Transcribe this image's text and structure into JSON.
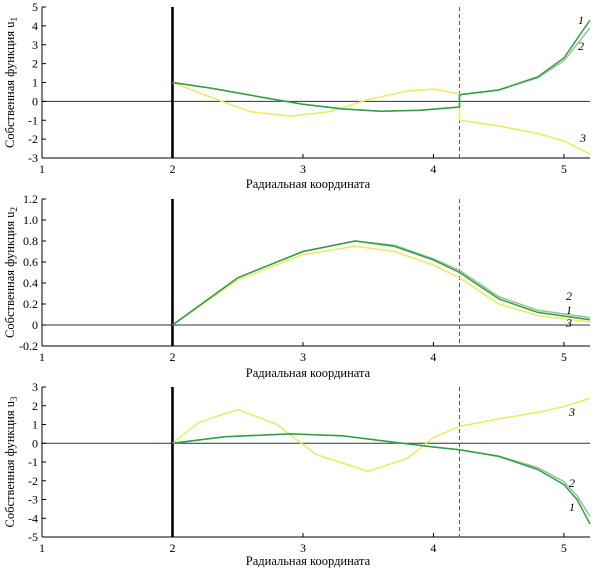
{
  "colors": {
    "curve1": "#2e9e4a",
    "curve2": "#97c486",
    "curve3": "#ecea5e",
    "zero_line": "#333333",
    "axes": "#000000",
    "boundary": "#000000"
  },
  "chart_data": [
    {
      "type": "line",
      "title": "",
      "xlabel": "Радиальная координата",
      "ylabel": "Собственная функция u",
      "ylabel_subscript": "1",
      "xlim": [
        1,
        5.2
      ],
      "ylim": [
        -3,
        5
      ],
      "x_ticks": [
        1,
        2,
        3,
        4,
        5
      ],
      "y_ticks": [
        -3,
        -2,
        -1,
        0,
        1,
        2,
        3,
        4,
        5
      ],
      "vertical_line_solid": 2,
      "vertical_line_dashed": 4.2,
      "grid": false,
      "series": [
        {
          "name": "1",
          "points": [
            [
              2.0,
              1.0
            ],
            [
              2.3,
              0.7
            ],
            [
              2.7,
              0.2
            ],
            [
              3.0,
              -0.15
            ],
            [
              3.3,
              -0.4
            ],
            [
              3.6,
              -0.52
            ],
            [
              3.9,
              -0.47
            ],
            [
              4.2,
              -0.3
            ],
            [
              4.2,
              0.35
            ],
            [
              4.5,
              0.6
            ],
            [
              4.8,
              1.3
            ],
            [
              5.0,
              2.3
            ],
            [
              5.2,
              4.3
            ]
          ]
        },
        {
          "name": "2",
          "points": [
            [
              2.0,
              1.0
            ],
            [
              2.3,
              0.7
            ],
            [
              2.7,
              0.2
            ],
            [
              3.0,
              -0.15
            ],
            [
              3.3,
              -0.4
            ],
            [
              3.6,
              -0.52
            ],
            [
              3.9,
              -0.47
            ],
            [
              4.2,
              -0.3
            ],
            [
              4.2,
              0.35
            ],
            [
              4.5,
              0.6
            ],
            [
              4.8,
              1.25
            ],
            [
              5.0,
              2.15
            ],
            [
              5.2,
              3.9
            ]
          ]
        },
        {
          "name": "3",
          "points": [
            [
              2.0,
              1.0
            ],
            [
              2.3,
              0.2
            ],
            [
              2.6,
              -0.55
            ],
            [
              2.9,
              -0.78
            ],
            [
              3.2,
              -0.55
            ],
            [
              3.5,
              0.1
            ],
            [
              3.8,
              0.55
            ],
            [
              4.0,
              0.65
            ],
            [
              4.2,
              0.4
            ],
            [
              4.2,
              -1.0
            ],
            [
              4.5,
              -1.3
            ],
            [
              4.8,
              -1.7
            ],
            [
              5.0,
              -2.1
            ],
            [
              5.2,
              -2.8
            ]
          ]
        }
      ],
      "series_labels": [
        "1",
        "2",
        "3"
      ]
    },
    {
      "type": "line",
      "title": "",
      "xlabel": "Радиальная координата",
      "ylabel": "Собственная функция u",
      "ylabel_subscript": "2",
      "xlim": [
        1,
        5.2
      ],
      "ylim": [
        -0.2,
        1.2
      ],
      "x_ticks": [
        1,
        2,
        3,
        4,
        5
      ],
      "y_ticks": [
        -0.2,
        0,
        0.2,
        0.4,
        0.6,
        0.8,
        1.0,
        1.2
      ],
      "y_tick_labels": [
        "-0.2",
        "0",
        "0.2",
        "0.4",
        "0.6",
        "0.8",
        "1.0",
        "1.2"
      ],
      "vertical_line_solid": 2,
      "vertical_line_dashed": 4.2,
      "grid": false,
      "series": [
        {
          "name": "1",
          "points": [
            [
              2.0,
              0.0
            ],
            [
              2.5,
              0.45
            ],
            [
              3.0,
              0.7
            ],
            [
              3.4,
              0.8
            ],
            [
              3.7,
              0.75
            ],
            [
              4.0,
              0.62
            ],
            [
              4.2,
              0.5
            ],
            [
              4.5,
              0.25
            ],
            [
              4.8,
              0.12
            ],
            [
              5.2,
              0.05
            ]
          ]
        },
        {
          "name": "2",
          "points": [
            [
              2.0,
              0.0
            ],
            [
              2.5,
              0.45
            ],
            [
              3.0,
              0.7
            ],
            [
              3.4,
              0.8
            ],
            [
              3.7,
              0.76
            ],
            [
              4.0,
              0.63
            ],
            [
              4.2,
              0.52
            ],
            [
              4.5,
              0.27
            ],
            [
              4.8,
              0.14
            ],
            [
              5.2,
              0.07
            ]
          ]
        },
        {
          "name": "3",
          "points": [
            [
              2.0,
              0.0
            ],
            [
              2.5,
              0.43
            ],
            [
              3.0,
              0.67
            ],
            [
              3.4,
              0.75
            ],
            [
              3.7,
              0.7
            ],
            [
              4.0,
              0.57
            ],
            [
              4.2,
              0.45
            ],
            [
              4.5,
              0.2
            ],
            [
              4.8,
              0.09
            ],
            [
              5.2,
              0.03
            ]
          ]
        }
      ],
      "series_labels": [
        "2",
        "1",
        "3"
      ]
    },
    {
      "type": "line",
      "title": "",
      "xlabel": "Радиальная координата",
      "ylabel": "Собственная функция u",
      "ylabel_subscript": "3",
      "xlim": [
        1,
        5.2
      ],
      "ylim": [
        -5,
        3
      ],
      "x_ticks": [
        1,
        2,
        3,
        4,
        5
      ],
      "y_ticks": [
        -5,
        -4,
        -3,
        -2,
        -1,
        0,
        1,
        2,
        3
      ],
      "vertical_line_solid": 2,
      "vertical_line_dashed": 4.2,
      "grid": false,
      "series": [
        {
          "name": "1",
          "points": [
            [
              2.0,
              0.0
            ],
            [
              2.4,
              0.35
            ],
            [
              2.9,
              0.5
            ],
            [
              3.3,
              0.4
            ],
            [
              3.7,
              0.05
            ],
            [
              4.0,
              -0.2
            ],
            [
              4.2,
              -0.35
            ],
            [
              4.5,
              -0.7
            ],
            [
              4.8,
              -1.4
            ],
            [
              5.0,
              -2.2
            ],
            [
              5.1,
              -3.0
            ],
            [
              5.2,
              -4.3
            ]
          ]
        },
        {
          "name": "2",
          "points": [
            [
              2.0,
              0.0
            ],
            [
              2.4,
              0.35
            ],
            [
              2.9,
              0.5
            ],
            [
              3.3,
              0.4
            ],
            [
              3.7,
              0.05
            ],
            [
              4.0,
              -0.2
            ],
            [
              4.2,
              -0.35
            ],
            [
              4.5,
              -0.68
            ],
            [
              4.8,
              -1.3
            ],
            [
              5.0,
              -2.05
            ],
            [
              5.1,
              -2.8
            ],
            [
              5.2,
              -3.9
            ]
          ]
        },
        {
          "name": "3",
          "points": [
            [
              2.0,
              0.0
            ],
            [
              2.2,
              1.1
            ],
            [
              2.5,
              1.8
            ],
            [
              2.8,
              1.0
            ],
            [
              3.1,
              -0.6
            ],
            [
              3.5,
              -1.5
            ],
            [
              3.8,
              -0.8
            ],
            [
              4.0,
              0.3
            ],
            [
              4.2,
              0.9
            ],
            [
              4.5,
              1.3
            ],
            [
              4.8,
              1.65
            ],
            [
              5.0,
              1.95
            ],
            [
              5.2,
              2.4
            ]
          ]
        }
      ],
      "series_labels": [
        "3",
        "2",
        "1"
      ]
    }
  ]
}
